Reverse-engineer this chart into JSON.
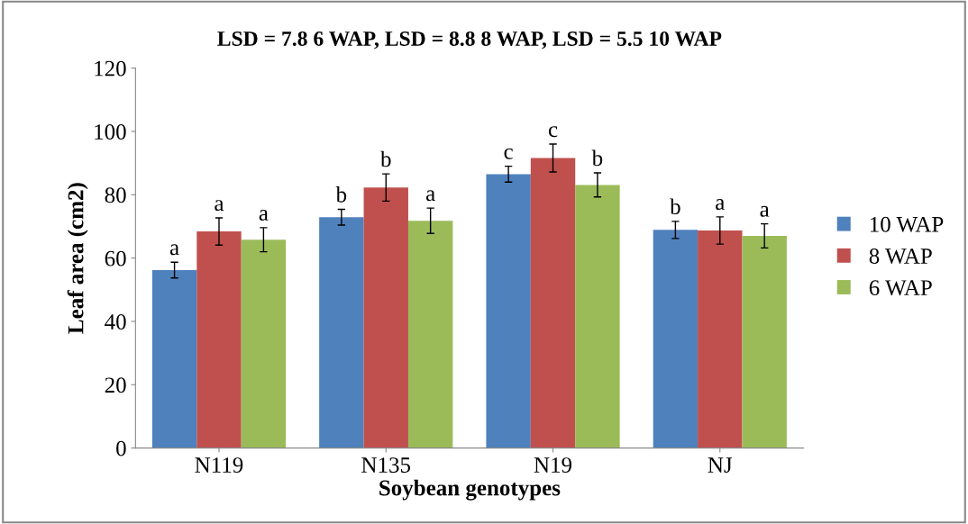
{
  "chart_data": {
    "type": "bar",
    "title": "LSD = 7.8 6 WAP, LSD = 8.8 8 WAP, LSD = 5.5 10 WAP",
    "xlabel": "Soybean genotypes",
    "ylabel": "Leaf area (cm2)",
    "categories": [
      "N119",
      "N135",
      "N19",
      "NJ"
    ],
    "series": [
      {
        "name": "10 WAP",
        "color": "#4f81bd",
        "values": [
          56.2,
          72.9,
          86.5,
          68.9
        ],
        "errors": [
          2.5,
          2.5,
          2.5,
          2.7
        ],
        "value_labels": [
          "a",
          "b",
          "c",
          "b"
        ]
      },
      {
        "name": "8 WAP",
        "color": "#c0504d",
        "values": [
          68.4,
          82.3,
          91.6,
          68.7
        ],
        "errors": [
          4.3,
          4.3,
          4.4,
          4.3
        ],
        "value_labels": [
          "a",
          "b",
          "c",
          "a"
        ]
      },
      {
        "name": "6 WAP",
        "color": "#9bbb59",
        "values": [
          65.8,
          71.8,
          83.1,
          67.0
        ],
        "errors": [
          3.8,
          4.0,
          3.8,
          3.8
        ],
        "value_labels": [
          "a",
          "a",
          "b",
          "a"
        ]
      }
    ],
    "ylim": [
      0,
      120
    ],
    "yticks": [
      0,
      20,
      40,
      60,
      80,
      100,
      120
    ],
    "grid": false,
    "legend": "right"
  }
}
